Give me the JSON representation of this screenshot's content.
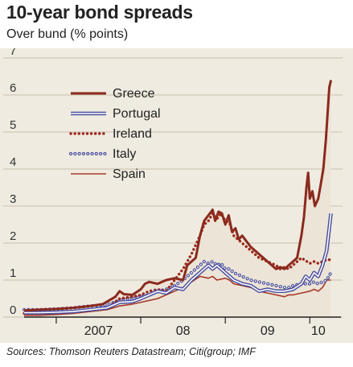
{
  "chart_data": {
    "type": "line",
    "title": "10-year bond spreads",
    "subtitle": "Over bund (% points)",
    "source": "Sources: Thomson Reuters Datastream; Citi(group; IMF",
    "y_ticks": [
      "0",
      "1",
      "2",
      "3",
      "4",
      "5",
      "6",
      "7"
    ],
    "ylim": [
      0,
      7
    ],
    "x_ticks": [
      {
        "label": "2007",
        "x": 2007.5
      },
      {
        "label": "08",
        "x": 2008.5
      },
      {
        "label": "09",
        "x": 2009.5
      },
      {
        "label": "10",
        "x": 2010.1
      }
    ],
    "xlim": [
      2006.62,
      2010.33
    ],
    "grid": true,
    "legend_position": "top-left",
    "series": [
      {
        "name": "Greece",
        "color": "#8b2a1e",
        "style": "thick-line",
        "fill": "#ece4d6",
        "points": [
          [
            2006.62,
            0.18
          ],
          [
            2006.8,
            0.2
          ],
          [
            2007.0,
            0.22
          ],
          [
            2007.2,
            0.25
          ],
          [
            2007.4,
            0.3
          ],
          [
            2007.55,
            0.35
          ],
          [
            2007.7,
            0.55
          ],
          [
            2007.75,
            0.7
          ],
          [
            2007.8,
            0.62
          ],
          [
            2007.9,
            0.6
          ],
          [
            2008.0,
            0.75
          ],
          [
            2008.05,
            0.9
          ],
          [
            2008.1,
            0.95
          ],
          [
            2008.2,
            0.9
          ],
          [
            2008.3,
            1.0
          ],
          [
            2008.4,
            1.05
          ],
          [
            2008.5,
            1.0
          ],
          [
            2008.55,
            1.4
          ],
          [
            2008.6,
            1.5
          ],
          [
            2008.65,
            1.6
          ],
          [
            2008.7,
            2.2
          ],
          [
            2008.75,
            2.6
          ],
          [
            2008.8,
            2.75
          ],
          [
            2008.85,
            2.9
          ],
          [
            2008.88,
            2.6
          ],
          [
            2008.92,
            2.85
          ],
          [
            2008.96,
            2.8
          ],
          [
            2009.0,
            2.5
          ],
          [
            2009.04,
            2.75
          ],
          [
            2009.08,
            2.3
          ],
          [
            2009.12,
            2.4
          ],
          [
            2009.16,
            2.1
          ],
          [
            2009.2,
            2.2
          ],
          [
            2009.3,
            1.9
          ],
          [
            2009.4,
            1.7
          ],
          [
            2009.5,
            1.5
          ],
          [
            2009.55,
            1.4
          ],
          [
            2009.6,
            1.3
          ],
          [
            2009.65,
            1.35
          ],
          [
            2009.7,
            1.3
          ],
          [
            2009.75,
            1.4
          ],
          [
            2009.8,
            1.5
          ],
          [
            2009.85,
            1.6
          ],
          [
            2009.9,
            2.2
          ],
          [
            2009.93,
            2.7
          ],
          [
            2009.96,
            3.5
          ],
          [
            2009.98,
            3.9
          ],
          [
            2010.0,
            3.2
          ],
          [
            2010.03,
            3.4
          ],
          [
            2010.06,
            3.0
          ],
          [
            2010.1,
            3.2
          ],
          [
            2010.13,
            3.6
          ],
          [
            2010.16,
            4.0
          ],
          [
            2010.19,
            4.8
          ],
          [
            2010.21,
            5.5
          ],
          [
            2010.23,
            6.2
          ],
          [
            2010.25,
            6.4
          ]
        ]
      },
      {
        "name": "Portugal",
        "color": "#4b4f9e",
        "style": "double-line",
        "points": [
          [
            2006.62,
            0.12
          ],
          [
            2006.8,
            0.12
          ],
          [
            2007.0,
            0.13
          ],
          [
            2007.2,
            0.15
          ],
          [
            2007.4,
            0.2
          ],
          [
            2007.6,
            0.25
          ],
          [
            2007.75,
            0.4
          ],
          [
            2007.9,
            0.42
          ],
          [
            2008.0,
            0.5
          ],
          [
            2008.1,
            0.6
          ],
          [
            2008.2,
            0.7
          ],
          [
            2008.3,
            0.65
          ],
          [
            2008.4,
            0.8
          ],
          [
            2008.5,
            0.75
          ],
          [
            2008.6,
            1.0
          ],
          [
            2008.7,
            1.2
          ],
          [
            2008.75,
            1.3
          ],
          [
            2008.8,
            1.4
          ],
          [
            2008.85,
            1.3
          ],
          [
            2008.9,
            1.4
          ],
          [
            2009.0,
            1.2
          ],
          [
            2009.1,
            1.0
          ],
          [
            2009.2,
            0.9
          ],
          [
            2009.3,
            0.85
          ],
          [
            2009.4,
            0.7
          ],
          [
            2009.5,
            0.75
          ],
          [
            2009.6,
            0.7
          ],
          [
            2009.7,
            0.7
          ],
          [
            2009.8,
            0.75
          ],
          [
            2009.9,
            0.9
          ],
          [
            2009.95,
            1.1
          ],
          [
            2010.0,
            1.0
          ],
          [
            2010.05,
            1.2
          ],
          [
            2010.1,
            1.1
          ],
          [
            2010.15,
            1.4
          ],
          [
            2010.2,
            1.8
          ],
          [
            2010.23,
            2.4
          ],
          [
            2010.25,
            2.8
          ]
        ]
      },
      {
        "name": "Ireland",
        "color": "#9c2a1e",
        "style": "dotted-line",
        "points": [
          [
            2006.62,
            0.1
          ],
          [
            2006.8,
            0.1
          ],
          [
            2007.0,
            0.12
          ],
          [
            2007.2,
            0.15
          ],
          [
            2007.4,
            0.2
          ],
          [
            2007.6,
            0.25
          ],
          [
            2007.75,
            0.5
          ],
          [
            2007.9,
            0.55
          ],
          [
            2008.0,
            0.6
          ],
          [
            2008.1,
            0.7
          ],
          [
            2008.2,
            0.75
          ],
          [
            2008.3,
            0.7
          ],
          [
            2008.4,
            1.0
          ],
          [
            2008.5,
            1.3
          ],
          [
            2008.6,
            1.7
          ],
          [
            2008.7,
            2.2
          ],
          [
            2008.75,
            2.5
          ],
          [
            2008.8,
            2.6
          ],
          [
            2008.85,
            2.8
          ],
          [
            2008.9,
            2.65
          ],
          [
            2008.95,
            2.8
          ],
          [
            2009.0,
            2.6
          ],
          [
            2009.05,
            2.55
          ],
          [
            2009.1,
            2.2
          ],
          [
            2009.2,
            2.0
          ],
          [
            2009.3,
            1.8
          ],
          [
            2009.4,
            1.6
          ],
          [
            2009.5,
            1.5
          ],
          [
            2009.6,
            1.4
          ],
          [
            2009.65,
            1.3
          ],
          [
            2009.7,
            1.35
          ],
          [
            2009.75,
            1.3
          ],
          [
            2009.8,
            1.4
          ],
          [
            2009.9,
            1.6
          ],
          [
            2010.0,
            1.45
          ],
          [
            2010.05,
            1.5
          ],
          [
            2010.1,
            1.45
          ],
          [
            2010.15,
            1.5
          ],
          [
            2010.2,
            1.55
          ],
          [
            2010.25,
            1.55
          ]
        ]
      },
      {
        "name": "Italy",
        "color": "#4b4f9e",
        "style": "circles",
        "points": [
          [
            2006.62,
            0.2
          ],
          [
            2006.8,
            0.2
          ],
          [
            2007.0,
            0.22
          ],
          [
            2007.2,
            0.25
          ],
          [
            2007.4,
            0.3
          ],
          [
            2007.6,
            0.33
          ],
          [
            2007.75,
            0.45
          ],
          [
            2007.9,
            0.5
          ],
          [
            2008.0,
            0.55
          ],
          [
            2008.1,
            0.6
          ],
          [
            2008.2,
            0.7
          ],
          [
            2008.3,
            0.75
          ],
          [
            2008.4,
            0.85
          ],
          [
            2008.5,
            1.0
          ],
          [
            2008.6,
            1.2
          ],
          [
            2008.7,
            1.4
          ],
          [
            2008.75,
            1.5
          ],
          [
            2008.8,
            1.45
          ],
          [
            2008.85,
            1.5
          ],
          [
            2008.9,
            1.4
          ],
          [
            2008.95,
            1.45
          ],
          [
            2009.0,
            1.3
          ],
          [
            2009.05,
            1.3
          ],
          [
            2009.1,
            1.2
          ],
          [
            2009.2,
            1.1
          ],
          [
            2009.3,
            1.0
          ],
          [
            2009.4,
            0.95
          ],
          [
            2009.5,
            0.9
          ],
          [
            2009.6,
            0.85
          ],
          [
            2009.7,
            0.8
          ],
          [
            2009.75,
            0.8
          ],
          [
            2009.8,
            0.85
          ],
          [
            2009.9,
            0.9
          ],
          [
            2010.0,
            0.9
          ],
          [
            2010.05,
            0.95
          ],
          [
            2010.1,
            0.9
          ],
          [
            2010.15,
            0.95
          ],
          [
            2010.2,
            1.0
          ],
          [
            2010.25,
            1.2
          ]
        ]
      },
      {
        "name": "Spain",
        "color": "#a53a2a",
        "style": "thin-line",
        "points": [
          [
            2006.62,
            0.05
          ],
          [
            2006.8,
            0.05
          ],
          [
            2007.0,
            0.07
          ],
          [
            2007.2,
            0.1
          ],
          [
            2007.4,
            0.15
          ],
          [
            2007.6,
            0.2
          ],
          [
            2007.75,
            0.3
          ],
          [
            2007.9,
            0.35
          ],
          [
            2008.0,
            0.4
          ],
          [
            2008.1,
            0.45
          ],
          [
            2008.2,
            0.5
          ],
          [
            2008.3,
            0.6
          ],
          [
            2008.4,
            0.7
          ],
          [
            2008.5,
            0.8
          ],
          [
            2008.6,
            0.95
          ],
          [
            2008.7,
            1.1
          ],
          [
            2008.8,
            1.05
          ],
          [
            2008.85,
            1.1
          ],
          [
            2008.9,
            1.0
          ],
          [
            2009.0,
            1.05
          ],
          [
            2009.05,
            1.0
          ],
          [
            2009.1,
            0.9
          ],
          [
            2009.2,
            0.85
          ],
          [
            2009.3,
            0.8
          ],
          [
            2009.4,
            0.7
          ],
          [
            2009.5,
            0.65
          ],
          [
            2009.6,
            0.6
          ],
          [
            2009.7,
            0.55
          ],
          [
            2009.75,
            0.6
          ],
          [
            2009.8,
            0.6
          ],
          [
            2009.9,
            0.65
          ],
          [
            2010.0,
            0.7
          ],
          [
            2010.05,
            0.75
          ],
          [
            2010.1,
            0.7
          ],
          [
            2010.15,
            0.8
          ],
          [
            2010.2,
            1.0
          ],
          [
            2010.25,
            1.0
          ]
        ]
      }
    ]
  }
}
